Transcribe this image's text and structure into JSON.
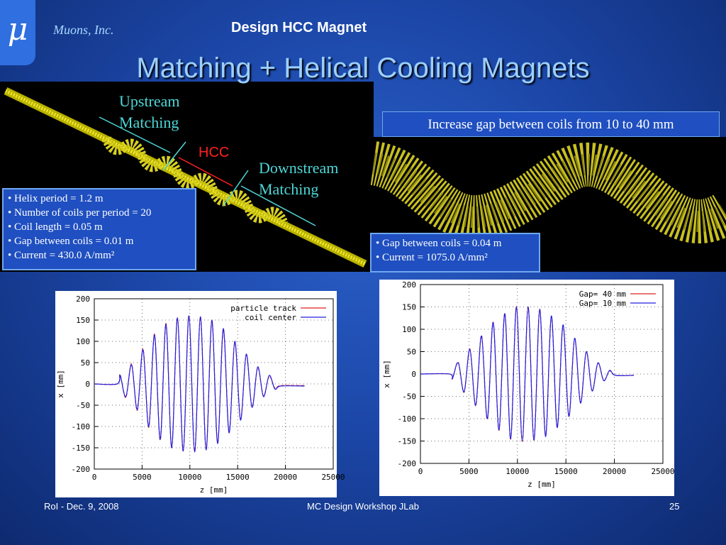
{
  "header": {
    "logo": "μ",
    "company": "Muons, Inc.",
    "topic": "Design HCC Magnet",
    "title": "Matching + Helical Cooling Magnets"
  },
  "left_image": {
    "upstream": "Upstream\nMatching",
    "hcc": "HCC",
    "downstream": "Downstream\nMatching",
    "bullets": [
      "Helix period = 1.2 m",
      "Number of coils per period = 20",
      "Coil length = 0.05 m",
      "Gap between coils = 0.01 m",
      "Current = 430.0 A/mm²"
    ]
  },
  "right_image": {
    "caption": "Increase gap between coils from 10 to 40 mm",
    "bullets": [
      "Gap between coils = 0.04 m",
      "Current = 1075.0 A/mm²"
    ]
  },
  "chart_data": [
    {
      "type": "line",
      "x_label": "z [mm]",
      "y_label": "x [mm]",
      "x": [
        0,
        2400,
        2700,
        3300,
        3900,
        4500,
        5100,
        5700,
        6300,
        6900,
        7500,
        8100,
        8700,
        9300,
        9900,
        10500,
        11100,
        11700,
        12300,
        12900,
        13500,
        14100,
        14700,
        15300,
        15900,
        16500,
        17100,
        17700,
        18300,
        18900,
        19500,
        22000
      ],
      "xlim": [
        0,
        25000
      ],
      "xticks": [
        0,
        5000,
        10000,
        15000,
        20000,
        25000
      ],
      "ylim": [
        -200,
        200
      ],
      "yticks": [
        -200,
        -150,
        -100,
        -50,
        0,
        50,
        100,
        150,
        200
      ],
      "grid": true,
      "legend": "top-right",
      "series": [
        {
          "name": "particle track",
          "color": "#e02020",
          "values": [
            0,
            0,
            22,
            -32,
            47,
            -62,
            82,
            -102,
            117,
            -132,
            142,
            -150,
            155,
            -157,
            160,
            -158,
            157,
            -154,
            148,
            -138,
            128,
            -112,
            98,
            -83,
            68,
            -53,
            38,
            -28,
            18,
            -10,
            -4,
            -4
          ]
        },
        {
          "name": "coil center",
          "color": "#2020e0",
          "values": [
            0,
            0,
            20,
            -30,
            45,
            -60,
            80,
            -100,
            115,
            -130,
            140,
            -150,
            155,
            -158,
            160,
            -160,
            158,
            -155,
            150,
            -140,
            130,
            -115,
            100,
            -85,
            70,
            -55,
            40,
            -30,
            20,
            -12,
            -5,
            -5
          ]
        }
      ]
    },
    {
      "type": "line",
      "x_label": "z [mm]",
      "y_label": "x [mm]",
      "x": [
        0,
        3000,
        3300,
        3900,
        4500,
        5100,
        5700,
        6300,
        6900,
        7500,
        8100,
        8700,
        9300,
        9900,
        10500,
        11100,
        11700,
        12300,
        12900,
        13500,
        14100,
        14700,
        15300,
        15900,
        16500,
        17100,
        17700,
        18300,
        18900,
        19500,
        20100,
        22000
      ],
      "xlim": [
        0,
        25000
      ],
      "xticks": [
        0,
        5000,
        10000,
        15000,
        20000,
        25000
      ],
      "ylim": [
        -200,
        200
      ],
      "yticks": [
        -200,
        -150,
        -100,
        -50,
        0,
        50,
        100,
        150,
        200
      ],
      "grid": true,
      "legend": "top-right",
      "series": [
        {
          "name": "Gap= 40 mm",
          "color": "#e02020",
          "values": [
            0,
            0,
            -11,
            26,
            -41,
            56,
            -71,
            86,
            -101,
            116,
            -126,
            136,
            -146,
            151,
            -151,
            150,
            -148,
            144,
            -139,
            129,
            -119,
            109,
            -94,
            79,
            -64,
            49,
            -37,
            24,
            -14,
            7,
            -3,
            -3
          ]
        },
        {
          "name": "Gap= 10 mm",
          "color": "#2020e0",
          "values": [
            0,
            0,
            -10,
            25,
            -40,
            55,
            -70,
            85,
            -100,
            115,
            -125,
            135,
            -145,
            150,
            -150,
            150,
            -148,
            145,
            -140,
            130,
            -120,
            110,
            -95,
            80,
            -65,
            50,
            -38,
            25,
            -15,
            8,
            -3,
            -3
          ]
        }
      ]
    }
  ],
  "footer": {
    "left": "RoI - Dec. 9, 2008",
    "center": "MC Design Workshop JLab",
    "right": "25"
  }
}
